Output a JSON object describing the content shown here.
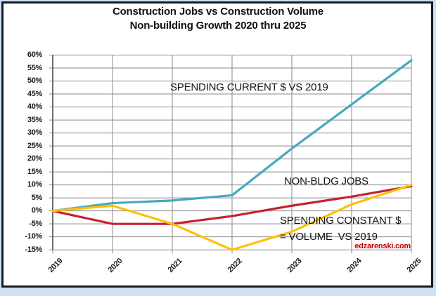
{
  "title": {
    "line1": "Construction Jobs vs Construction Volume",
    "line2": "Non-building Growth 2020 thru 2025"
  },
  "watermark": "edzarenski.com",
  "colors": {
    "frame_border": "#191923",
    "page_edge": "#cfe2f4",
    "grid": "#8a8a8a",
    "axis": "#4a4a4a",
    "text": "#141414",
    "watermark_red": "#c00000",
    "spending_current_teal": "#46a8c0",
    "jobs_red": "#c4232e",
    "spending_constant_gold": "#ffc008"
  },
  "chart_data": {
    "type": "line",
    "title": "Construction Jobs vs Construction Volume — Non-building Growth 2020 thru 2025",
    "x": [
      2019,
      2020,
      2021,
      2022,
      2023,
      2024,
      2025
    ],
    "x_tick_labels": [
      "2019",
      "2020",
      "2021",
      "2022",
      "2023",
      "2024",
      "2025"
    ],
    "y_tick_labels": [
      "60%",
      "55%",
      "50%",
      "45%",
      "40%",
      "35%",
      "30%",
      "25%",
      "20%",
      "15%",
      "10%",
      "5%",
      "0%",
      "-5%",
      "-10%",
      "-15%"
    ],
    "ylim": [
      -15,
      60
    ],
    "y_step": 5,
    "grid": true,
    "legend_position": "none",
    "series": [
      {
        "name": "SPENDING CURRENT $ VS 2019",
        "color": "#46a8c0",
        "values": [
          0,
          3,
          4,
          6,
          24,
          41,
          58
        ]
      },
      {
        "name": "NON-BLDG JOBS",
        "color": "#c4232e",
        "values": [
          0,
          -5,
          -5,
          -2,
          2,
          5.5,
          9.5
        ]
      },
      {
        "name": "SPENDING CONSTANT $ = VOLUME VS 2019",
        "color": "#ffc008",
        "values": [
          0,
          2,
          -5,
          -15,
          -8,
          2.5,
          10
        ]
      }
    ],
    "annotations": [
      {
        "text": "SPENDING CURRENT $ VS 2019"
      },
      {
        "text": "NON-BLDG JOBS"
      },
      {
        "text": "SPENDING CONSTANT $"
      },
      {
        "text": "= VOLUME  VS 2019"
      }
    ]
  }
}
